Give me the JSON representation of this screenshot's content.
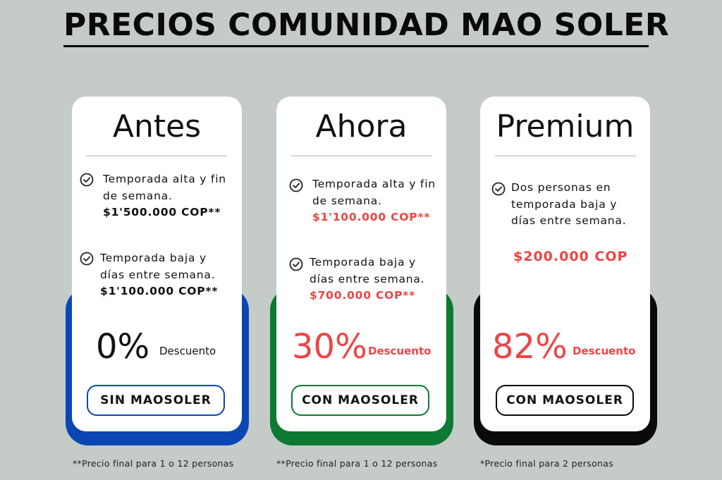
{
  "page": {
    "title": "PRECIOS COMUNIDAD MAO SOLER"
  },
  "colors": {
    "background": "#c5cbc7",
    "blue": "#0a47b5",
    "green": "#0c7a32",
    "black": "#0a0a0a",
    "red": "#ef4444"
  },
  "plans": [
    {
      "name": "Antes",
      "features": [
        {
          "text": "Temporada alta y fin de semana.",
          "price": "$1'500.000 COP**"
        },
        {
          "text": "Temporada baja y días entre semana.",
          "price": "$1'100.000 COP**"
        }
      ],
      "discount_value": "0%",
      "discount_label": "Descuento",
      "button_label": "SIN MAOSOLER",
      "note": "**Precio final para 1 o 12 personas"
    },
    {
      "name": "Ahora",
      "features": [
        {
          "text": "Temporada alta y fin de semana.",
          "price": "$1'100.000 COP**"
        },
        {
          "text": "Temporada baja y días entre semana.",
          "price": "$700.000 COP**"
        }
      ],
      "discount_value": "30%",
      "discount_label": "Descuento",
      "button_label": "CON MAOSOLER",
      "note": "**Precio final para 1 o 12 personas"
    },
    {
      "name": "Premium",
      "features": [
        {
          "text": "Dos personas en temporada baja y días entre semana.",
          "price": "$200.000 COP"
        }
      ],
      "discount_value": "82%",
      "discount_label": "Descuento",
      "button_label": "CON MAOSOLER",
      "note": "*Precio final para 2 personas"
    }
  ]
}
